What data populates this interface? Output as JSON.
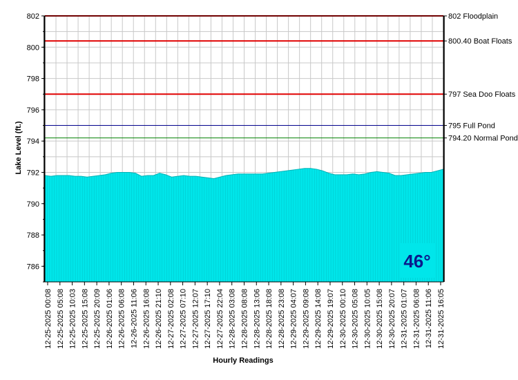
{
  "chart_data": {
    "type": "area",
    "xlabel": "Hourly Readings",
    "ylabel": "Lake Level (ft.)",
    "ylim": [
      785,
      802
    ],
    "yticks": [
      786,
      788,
      790,
      792,
      794,
      796,
      798,
      800,
      802
    ],
    "grid": true,
    "area_color": "#00e6ea",
    "x_tick_labels": [
      "12-25-2025 00:08",
      "12-25-2025 05:08",
      "12-25-2025 10:03",
      "12-25-2025 15:08",
      "12-25-2025 20:09",
      "12-26-2025 01:06",
      "12-26-2025 06:08",
      "12-26-2025 11:06",
      "12-26-2025 16:08",
      "12-26-2025 21:10",
      "12-27-2025 02:08",
      "12-27-2025 07:10",
      "12-27-2025 12:07",
      "12-27-2025 17:10",
      "12-27-2025 22:04",
      "12-28-2025 03:08",
      "12-28-2025 08:08",
      "12-28-2025 13:06",
      "12-28-2025 18:08",
      "12-28-2025 23:08",
      "12-29-2025 04:07",
      "12-29-2025 09:08",
      "12-29-2025 14:08",
      "12-29-2025 19:07",
      "12-30-2025 00:10",
      "12-30-2025 05:08",
      "12-30-2025 10:05",
      "12-30-2025 15:08",
      "12-30-2025 20:07",
      "12-31-2025 01:07",
      "12-31-2025 06:08",
      "12-31-2025 11:06",
      "12-31-2025 16:05"
    ],
    "series": [
      {
        "values": [
          791.8,
          791.75,
          791.8,
          791.8,
          791.8,
          791.75,
          791.75,
          791.7,
          791.75,
          791.8,
          791.85,
          791.95,
          792.0,
          792.0,
          792.0,
          791.95,
          791.75,
          791.8,
          791.8,
          791.95,
          791.85,
          791.7,
          791.75,
          791.8,
          791.75,
          791.75,
          791.7,
          791.65,
          791.6,
          791.7,
          791.8,
          791.85,
          791.9,
          791.9,
          791.9,
          791.9,
          791.9,
          791.95,
          792.0,
          792.05,
          792.1,
          792.15,
          792.2,
          792.25,
          792.25,
          792.2,
          792.1,
          791.95,
          791.85,
          791.85,
          791.85,
          791.9,
          791.85,
          791.9,
          792.0,
          792.05,
          792.0,
          791.95,
          791.8,
          791.8,
          791.85,
          791.9,
          791.95,
          792.0,
          792.0,
          792.1,
          792.2
        ]
      }
    ],
    "reference_lines": [
      {
        "value": 802,
        "label": "802 Floodplain",
        "color": "#e00000"
      },
      {
        "value": 800.4,
        "label": "800.40 Boat Floats",
        "color": "#e00000"
      },
      {
        "value": 797,
        "label": "797 Sea Doo Floats",
        "color": "#e00000"
      },
      {
        "value": 795,
        "label": "795 Full Pond",
        "color": "#00008b"
      },
      {
        "value": 794.2,
        "label": "794.20 Normal Pond",
        "color": "#008000"
      }
    ],
    "temperature": {
      "text": "46°"
    }
  }
}
